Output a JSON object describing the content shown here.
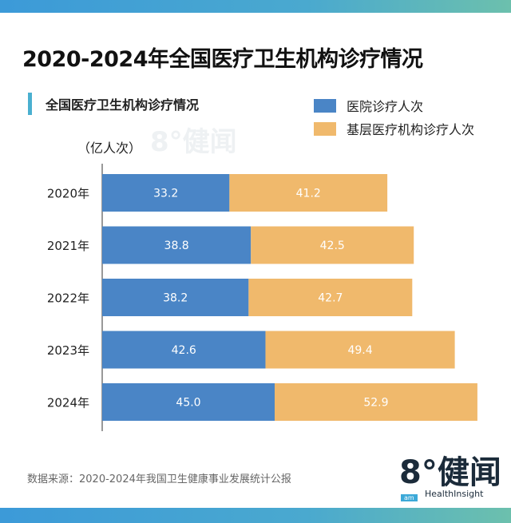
{
  "title": "2020-2024年全国医疗卫生机构诊疗情况",
  "source": "数据来源：2020-2024年我国卫生健康事业发展统计公报",
  "logo": {
    "text": "8°健闻",
    "sub": "HealthInsight",
    "badge": "am"
  },
  "colors": {
    "hospital": "#4a85c6",
    "primary": "#f0b96c",
    "band": "#3c9ad8"
  },
  "chart_data": {
    "type": "bar",
    "orientation": "horizontal",
    "stacked": true,
    "title": "全国医疗卫生机构诊疗情况",
    "unit": "（亿人次）",
    "categories": [
      "2020年",
      "2021年",
      "2022年",
      "2023年",
      "2024年"
    ],
    "series": [
      {
        "name": "医院诊疗人次",
        "values": [
          33.2,
          38.8,
          38.2,
          42.6,
          45.0
        ],
        "labels": [
          "33.2",
          "38.8",
          "38.2",
          "42.6",
          "45.0"
        ]
      },
      {
        "name": "基层医疗机构诊疗人次",
        "values": [
          41.2,
          42.5,
          42.7,
          49.4,
          52.9
        ],
        "labels": [
          "41.2",
          "42.5",
          "42.7",
          "49.4",
          "52.9"
        ]
      }
    ],
    "xlim": [
      0,
      100
    ],
    "grid": false,
    "legend": "top-right"
  }
}
